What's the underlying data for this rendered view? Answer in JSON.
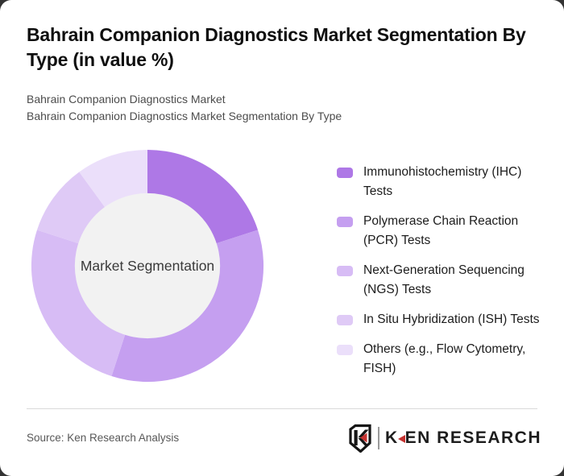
{
  "header": {
    "title": "Bahrain Companion Diagnostics Market Segmentation By Type (in value %)",
    "subtitle_line1": "Bahrain Companion Diagnostics Market",
    "subtitle_line2": "Bahrain Companion Diagnostics Market Segmentation By Type"
  },
  "chart_data": {
    "type": "pie",
    "subtype": "donut",
    "title": "Bahrain Companion Diagnostics Market Segmentation By Type (in value %)",
    "center_label": "Market Segmentation",
    "start_angle_deg": 0,
    "direction": "clockwise",
    "legend_position": "right",
    "hole_color": "#f2f2f2",
    "segments": [
      {
        "label": "Immunohistochemistry (IHC) Tests",
        "legend_label": "Immunohistochemistry (IHC)\nTests",
        "value_pct": 20,
        "color": "#ae78e6"
      },
      {
        "label": "Polymerase Chain Reaction (PCR) Tests",
        "legend_label": "Polymerase Chain Reaction\n(PCR) Tests",
        "value_pct": 35,
        "color": "#c59ff0"
      },
      {
        "label": "Next-Generation Sequencing (NGS) Tests",
        "legend_label": "Next-Generation Sequencing\n(NGS) Tests",
        "value_pct": 25,
        "color": "#d7bcf5"
      },
      {
        "label": "In Situ Hybridization (ISH) Tests",
        "legend_label": "In Situ Hybridization (ISH) Tests",
        "value_pct": 10,
        "color": "#dfcaf6"
      },
      {
        "label": "Others (e.g., Flow Cytometry, FISH)",
        "legend_label": "Others (e.g., Flow Cytometry,\nFISH)",
        "value_pct": 10,
        "color": "#ebdffa"
      }
    ]
  },
  "footer": {
    "source": "Source: Ken Research Analysis",
    "logo_text_k": "K",
    "logo_text_rest": "EN RESEARCH"
  },
  "colors": {
    "accent_red": "#c5312f",
    "card_bg": "#ffffff",
    "divider": "#d9d9d9"
  }
}
